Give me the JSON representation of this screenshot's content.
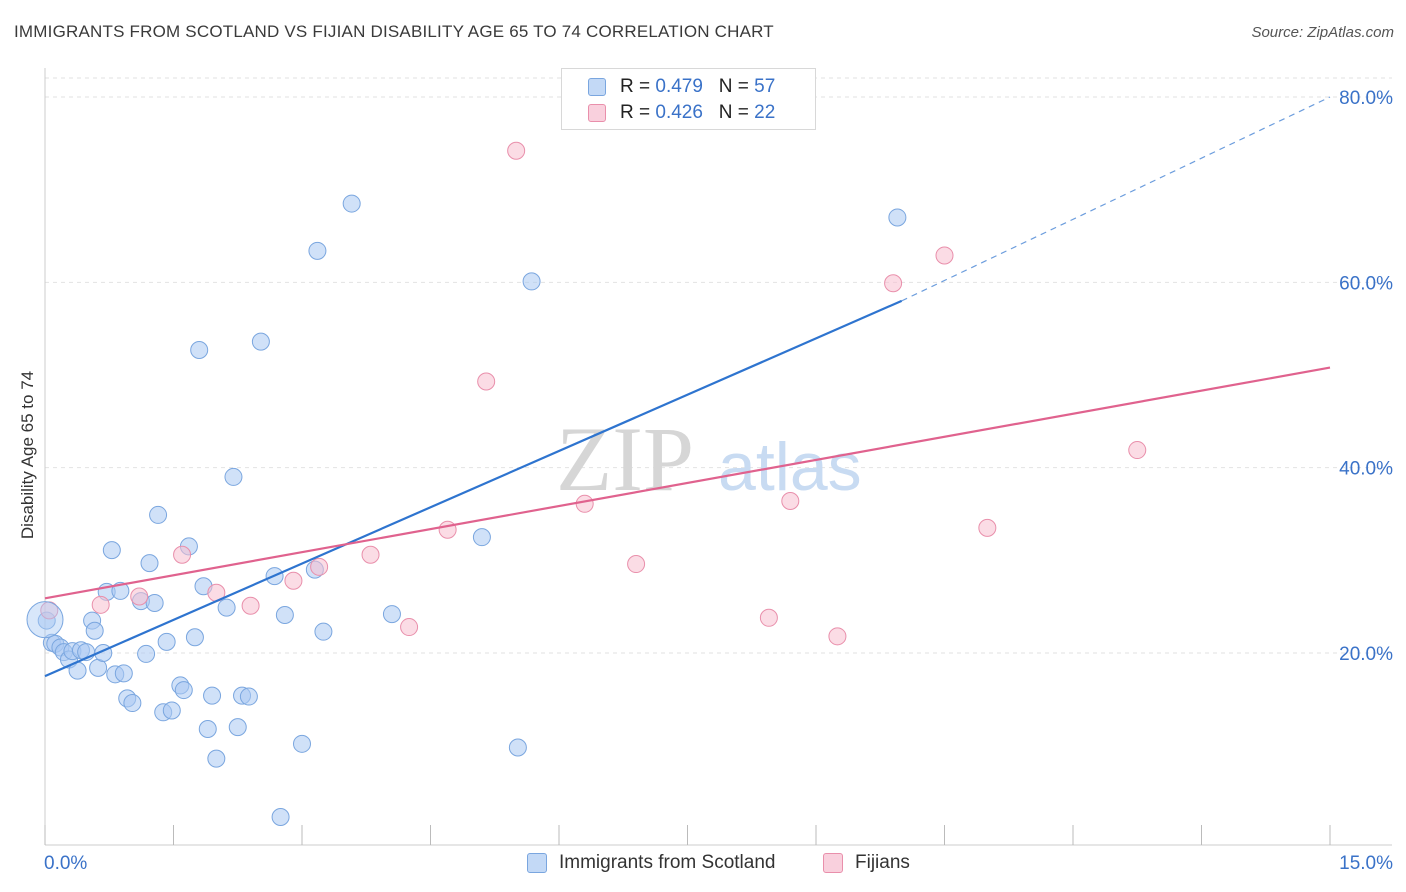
{
  "header": {
    "title": "IMMIGRANTS FROM SCOTLAND VS FIJIAN DISABILITY AGE 65 TO 74 CORRELATION CHART",
    "source": "Source: ZipAtlas.com"
  },
  "legend": {
    "rows": [
      {
        "r_label": "R = ",
        "r_value": "0.479",
        "n_label": "N = ",
        "n_value": "57"
      },
      {
        "r_label": "R = ",
        "r_value": "0.426",
        "n_label": "N = ",
        "n_value": "22"
      }
    ]
  },
  "bottom_legend": {
    "items": [
      {
        "label": "Immigrants from Scotland"
      },
      {
        "label": "Fijians"
      }
    ]
  },
  "colors": {
    "blue_fill": "#a9c9f3",
    "blue_stroke": "#7aa6df",
    "blue_line": "#2e74cf",
    "pink_fill": "#f7bfd0",
    "pink_stroke": "#e98fab",
    "pink_line": "#e0628e",
    "tick_label": "#3a72c8",
    "grid": "#e2e2e2"
  },
  "chart_data": {
    "type": "scatter",
    "title": "IMMIGRANTS FROM SCOTLAND VS FIJIAN DISABILITY AGE 65 TO 74 CORRELATION CHART",
    "xlabel": "",
    "ylabel": "Disability Age 65 to 74",
    "xlim": [
      0,
      15
    ],
    "ylim": [
      0,
      80
    ],
    "x_tick_labels": [
      "0.0%",
      "15.0%"
    ],
    "y_ticks": [
      20,
      40,
      60,
      80
    ],
    "y_tick_labels": [
      "20.0%",
      "40.0%",
      "60.0%",
      "80.0%"
    ],
    "grid": true,
    "watermark": "ZIPatlas",
    "series": [
      {
        "name": "Immigrants from Scotland",
        "color": "#a9c9f3",
        "points": [
          [
            0.02,
            23.5
          ],
          [
            0.08,
            21.1
          ],
          [
            0.12,
            21.0
          ],
          [
            0.18,
            20.6
          ],
          [
            0.22,
            20.1
          ],
          [
            0.28,
            19.3
          ],
          [
            0.32,
            20.2
          ],
          [
            0.38,
            18.1
          ],
          [
            0.42,
            20.3
          ],
          [
            0.48,
            20.1
          ],
          [
            0.55,
            23.5
          ],
          [
            0.58,
            22.4
          ],
          [
            0.62,
            18.4
          ],
          [
            0.68,
            20.0
          ],
          [
            0.72,
            26.6
          ],
          [
            0.78,
            31.1
          ],
          [
            0.82,
            17.7
          ],
          [
            0.88,
            26.7
          ],
          [
            0.92,
            17.8
          ],
          [
            0.96,
            15.1
          ],
          [
            1.02,
            14.6
          ],
          [
            1.12,
            25.6
          ],
          [
            1.18,
            19.9
          ],
          [
            1.22,
            29.7
          ],
          [
            1.28,
            25.4
          ],
          [
            1.32,
            34.9
          ],
          [
            1.38,
            13.6
          ],
          [
            1.42,
            21.2
          ],
          [
            1.48,
            13.8
          ],
          [
            1.58,
            16.5
          ],
          [
            1.62,
            16.0
          ],
          [
            1.68,
            31.5
          ],
          [
            1.75,
            21.7
          ],
          [
            1.8,
            52.7
          ],
          [
            1.85,
            27.2
          ],
          [
            1.9,
            11.8
          ],
          [
            1.95,
            15.4
          ],
          [
            2.0,
            8.6
          ],
          [
            2.12,
            24.9
          ],
          [
            2.2,
            39.0
          ],
          [
            2.25,
            12.0
          ],
          [
            2.3,
            15.4
          ],
          [
            2.38,
            15.3
          ],
          [
            2.52,
            53.6
          ],
          [
            2.68,
            28.3
          ],
          [
            2.75,
            2.3
          ],
          [
            2.8,
            24.1
          ],
          [
            3.0,
            10.2
          ],
          [
            3.15,
            29.0
          ],
          [
            3.18,
            63.4
          ],
          [
            3.25,
            22.3
          ],
          [
            3.58,
            68.5
          ],
          [
            4.05,
            24.2
          ],
          [
            5.1,
            32.5
          ],
          [
            5.52,
            9.8
          ],
          [
            5.68,
            60.1
          ],
          [
            9.95,
            67.0
          ]
        ],
        "trend": {
          "x0": 0,
          "y0": 17.5,
          "x1": 10.0,
          "y1": 58.0,
          "dashed_to_x": 15.0,
          "dashed_to_y": 80.0
        }
      },
      {
        "name": "Fijians",
        "color": "#f7bfd0",
        "points": [
          [
            0.05,
            24.6
          ],
          [
            0.65,
            25.2
          ],
          [
            1.1,
            26.1
          ],
          [
            1.6,
            30.6
          ],
          [
            2.0,
            26.5
          ],
          [
            2.4,
            25.1
          ],
          [
            2.9,
            27.8
          ],
          [
            3.2,
            29.3
          ],
          [
            3.8,
            30.6
          ],
          [
            4.25,
            22.8
          ],
          [
            4.7,
            33.3
          ],
          [
            5.15,
            49.3
          ],
          [
            5.5,
            74.2
          ],
          [
            6.3,
            36.1
          ],
          [
            6.9,
            29.6
          ],
          [
            8.45,
            23.8
          ],
          [
            8.7,
            36.4
          ],
          [
            9.25,
            21.8
          ],
          [
            9.9,
            59.9
          ],
          [
            10.5,
            62.9
          ],
          [
            11.0,
            33.5
          ],
          [
            12.75,
            41.9
          ]
        ],
        "trend": {
          "x0": 0,
          "y0": 25.9,
          "x1": 15.0,
          "y1": 50.8
        }
      }
    ]
  }
}
